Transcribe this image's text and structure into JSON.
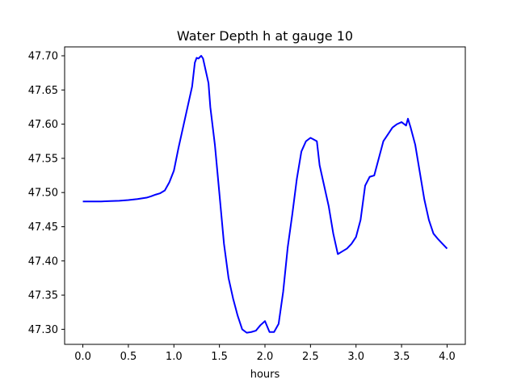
{
  "chart_data": {
    "type": "line",
    "title": "Water Depth h at gauge 10",
    "xlabel": "hours",
    "ylabel": "",
    "xlim": [
      -0.2,
      4.2
    ],
    "ylim": [
      47.278,
      47.713
    ],
    "xticks": [
      "0.0",
      "0.5",
      "1.0",
      "1.5",
      "2.0",
      "2.5",
      "3.0",
      "3.5",
      "4.0"
    ],
    "yticks": [
      "47.30",
      "47.35",
      "47.40",
      "47.45",
      "47.50",
      "47.55",
      "47.60",
      "47.65",
      "47.70"
    ],
    "grid": false,
    "legend": "none",
    "series": [
      {
        "color": "#0000ff",
        "x": [
          0.0,
          0.1,
          0.2,
          0.3,
          0.4,
          0.5,
          0.6,
          0.7,
          0.75,
          0.8,
          0.85,
          0.9,
          0.95,
          1.0,
          1.05,
          1.1,
          1.15,
          1.2,
          1.23,
          1.25,
          1.27,
          1.3,
          1.32,
          1.35,
          1.38,
          1.4,
          1.45,
          1.5,
          1.55,
          1.6,
          1.65,
          1.7,
          1.75,
          1.8,
          1.85,
          1.9,
          1.95,
          2.0,
          2.05,
          2.1,
          2.15,
          2.2,
          2.25,
          2.3,
          2.35,
          2.4,
          2.45,
          2.5,
          2.53,
          2.57,
          2.6,
          2.65,
          2.7,
          2.75,
          2.8,
          2.85,
          2.9,
          2.95,
          3.0,
          3.05,
          3.1,
          3.15,
          3.2,
          3.25,
          3.3,
          3.35,
          3.4,
          3.45,
          3.5,
          3.55,
          3.57,
          3.6,
          3.65,
          3.7,
          3.75,
          3.8,
          3.85,
          3.9,
          3.95,
          4.0
        ],
        "y": [
          47.487,
          47.487,
          47.487,
          47.4875,
          47.488,
          47.489,
          47.4905,
          47.4925,
          47.4945,
          47.497,
          47.499,
          47.503,
          47.515,
          47.532,
          47.565,
          47.595,
          47.625,
          47.655,
          47.69,
          47.697,
          47.696,
          47.7,
          47.696,
          47.678,
          47.66,
          47.625,
          47.57,
          47.498,
          47.425,
          47.375,
          47.345,
          47.32,
          47.3,
          47.295,
          47.296,
          47.298,
          47.306,
          47.312,
          47.296,
          47.296,
          47.308,
          47.355,
          47.42,
          47.468,
          47.52,
          47.56,
          47.575,
          47.58,
          47.578,
          47.575,
          47.54,
          47.51,
          47.48,
          47.44,
          47.41,
          47.414,
          47.418,
          47.425,
          47.435,
          47.46,
          47.51,
          47.523,
          47.525,
          47.55,
          47.575,
          47.585,
          47.595,
          47.6,
          47.603,
          47.598,
          47.608,
          47.595,
          47.57,
          47.53,
          47.49,
          47.46,
          47.44,
          47.432,
          47.425,
          47.418
        ]
      }
    ]
  }
}
